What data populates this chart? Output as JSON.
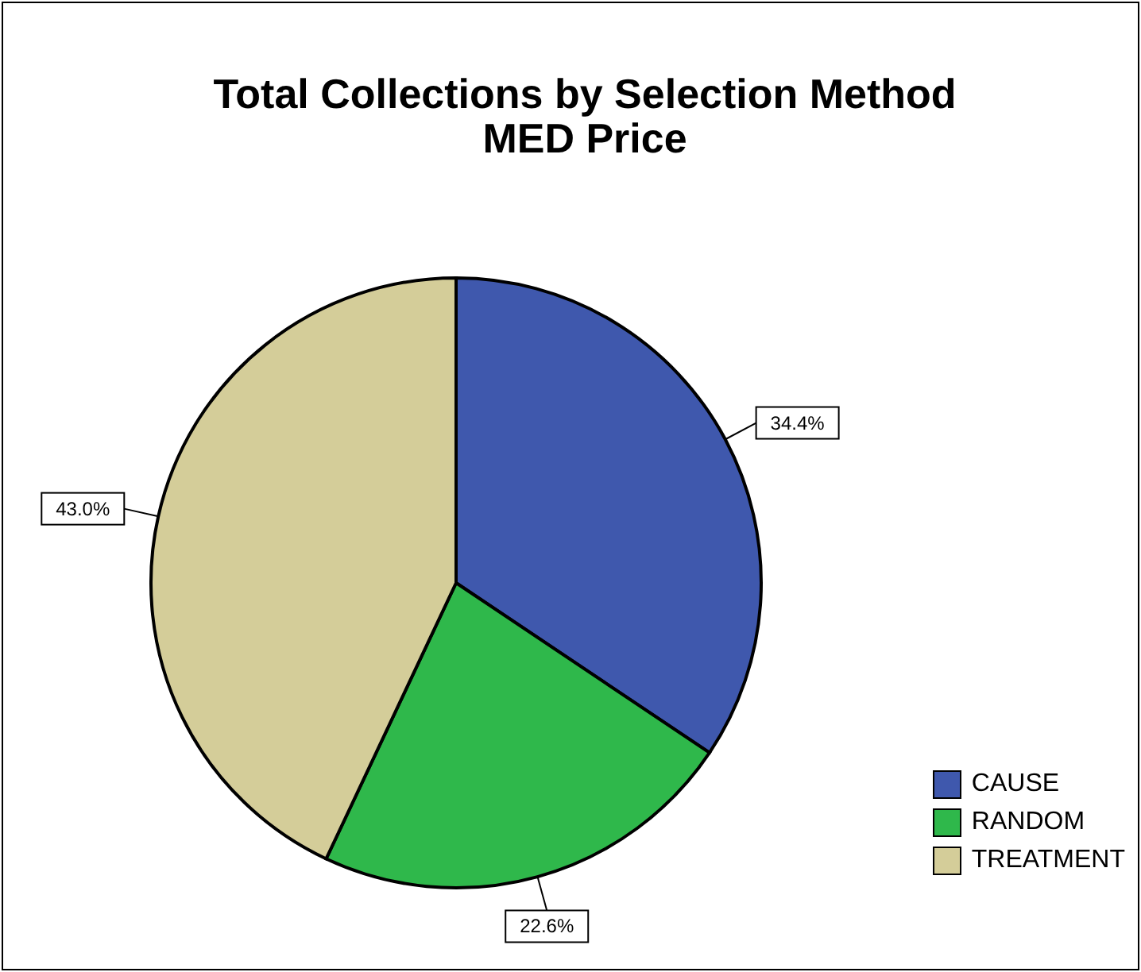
{
  "chart_data": {
    "type": "pie",
    "title": "Total Collections by Selection Method",
    "subtitle": "MED Price",
    "categories": [
      "CAUSE",
      "RANDOM",
      "TREATMENT"
    ],
    "values": [
      34.4,
      22.6,
      43.0
    ],
    "colors": [
      "#3f58ad",
      "#2fb84b",
      "#d4cd99"
    ],
    "value_labels": [
      "34.4%",
      "22.6%",
      "43.0%"
    ],
    "legend": "bottom right"
  }
}
